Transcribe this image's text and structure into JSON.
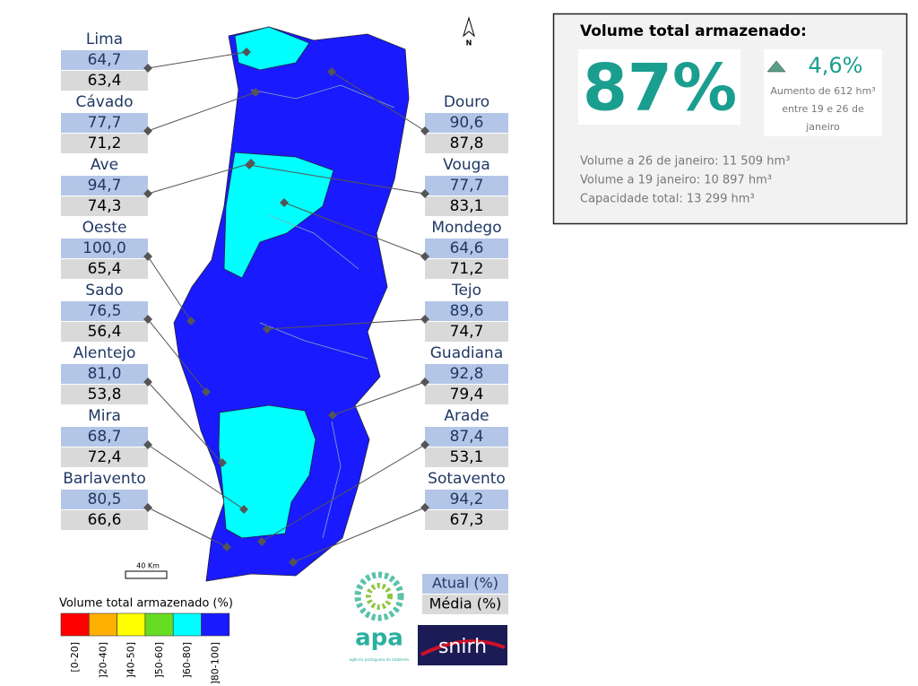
{
  "header": {
    "north": "N",
    "scale": "40 Km"
  },
  "basins": [
    {
      "name": "Lima",
      "atual": "64,7",
      "media": "63,4"
    },
    {
      "name": "Cávado",
      "atual": "77,7",
      "media": "71,2"
    },
    {
      "name": "Ave",
      "atual": "94,7",
      "media": "74,3"
    },
    {
      "name": "Oeste",
      "atual": "100,0",
      "media": "65,4"
    },
    {
      "name": "Sado",
      "atual": "76,5",
      "media": "56,4"
    },
    {
      "name": "Alentejo",
      "atual": "81,0",
      "media": "53,8"
    },
    {
      "name": "Mira",
      "atual": "68,7",
      "media": "72,4"
    },
    {
      "name": "Barlavento",
      "atual": "80,5",
      "media": "66,6"
    },
    {
      "name": "Douro",
      "atual": "90,6",
      "media": "87,8"
    },
    {
      "name": "Vouga",
      "atual": "77,7",
      "media": "83,1"
    },
    {
      "name": "Mondego",
      "atual": "64,6",
      "media": "71,2"
    },
    {
      "name": "Tejo",
      "atual": "89,6",
      "media": "74,7"
    },
    {
      "name": "Guadiana",
      "atual": "92,8",
      "media": "79,4"
    },
    {
      "name": "Arade",
      "atual": "87,4",
      "media": "53,1"
    },
    {
      "name": "Sotavento",
      "atual": "94,2",
      "media": "67,3"
    }
  ],
  "summary": {
    "title": "Volume total armazenado:",
    "total": "87%",
    "change": "4,6%",
    "change_note": [
      "Aumento de 612 hm³",
      "entre 19 e 26 de",
      "janeiro"
    ],
    "lines": [
      "Volume a 26 de janeiro: 11 509 hm³",
      "Volume a 19 janeiro: 10 897 hm³",
      "Capacidade total: 13 299 hm³"
    ]
  },
  "legend": {
    "title": "Volume total armazenado (%)",
    "classes": [
      {
        "label": "[0-20]",
        "color": "#ff0000"
      },
      {
        "label": "]20-40]",
        "color": "#ffb000"
      },
      {
        "label": "]40-50]",
        "color": "#ffff00"
      },
      {
        "label": "]50-60]",
        "color": "#66dd22"
      },
      {
        "label": "]60-80]",
        "color": "#00ffff"
      },
      {
        "label": "]80-100]",
        "color": "#1a1aff"
      }
    ]
  },
  "key": {
    "atual": "Atual (%)",
    "media": "Média (%)"
  },
  "logos": {
    "apa": "apa",
    "apa_sub": "agência portuguesa do ambiente",
    "snirh": "snirh"
  }
}
